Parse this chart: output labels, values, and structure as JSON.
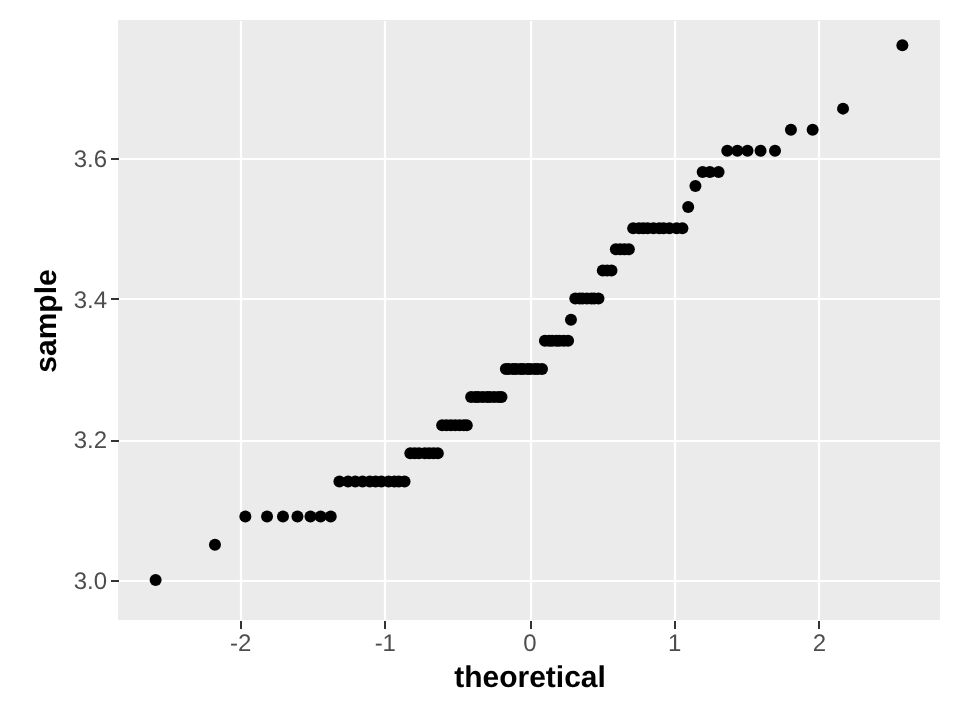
{
  "chart_data": {
    "type": "scatter",
    "xlabel": "theoretical",
    "ylabel": "sample",
    "x": [
      -2.58,
      -2.17,
      -1.96,
      -1.81,
      -1.7,
      -1.6,
      -1.51,
      -1.44,
      -1.37,
      -1.31,
      -1.25,
      -1.2,
      -1.15,
      -1.1,
      -1.06,
      -1.02,
      -0.97,
      -0.93,
      -0.9,
      -0.86,
      -0.82,
      -0.79,
      -0.76,
      -0.72,
      -0.69,
      -0.66,
      -0.63,
      -0.6,
      -0.57,
      -0.54,
      -0.51,
      -0.48,
      -0.45,
      -0.43,
      -0.4,
      -0.37,
      -0.35,
      -0.32,
      -0.29,
      -0.27,
      -0.24,
      -0.21,
      -0.19,
      -0.16,
      -0.14,
      -0.11,
      -0.09,
      -0.06,
      -0.04,
      -0.01,
      0.01,
      0.04,
      0.06,
      0.09,
      0.11,
      0.14,
      0.16,
      0.19,
      0.21,
      0.24,
      0.27,
      0.29,
      0.32,
      0.35,
      0.37,
      0.4,
      0.43,
      0.45,
      0.48,
      0.51,
      0.54,
      0.57,
      0.6,
      0.63,
      0.66,
      0.69,
      0.72,
      0.76,
      0.79,
      0.82,
      0.86,
      0.9,
      0.93,
      0.97,
      1.02,
      1.06,
      1.1,
      1.15,
      1.2,
      1.25,
      1.31,
      1.37,
      1.44,
      1.51,
      1.6,
      1.7,
      1.81,
      1.96,
      2.17,
      2.58
    ],
    "series": [
      {
        "color": "#000000",
        "values": [
          3.0,
          3.05,
          3.09,
          3.09,
          3.09,
          3.09,
          3.09,
          3.09,
          3.09,
          3.14,
          3.14,
          3.14,
          3.14,
          3.14,
          3.14,
          3.14,
          3.14,
          3.14,
          3.14,
          3.14,
          3.18,
          3.18,
          3.18,
          3.18,
          3.18,
          3.18,
          3.18,
          3.22,
          3.22,
          3.22,
          3.22,
          3.22,
          3.22,
          3.22,
          3.26,
          3.26,
          3.26,
          3.26,
          3.26,
          3.26,
          3.26,
          3.26,
          3.26,
          3.3,
          3.3,
          3.3,
          3.3,
          3.3,
          3.3,
          3.3,
          3.3,
          3.3,
          3.3,
          3.3,
          3.34,
          3.34,
          3.34,
          3.34,
          3.34,
          3.34,
          3.34,
          3.37,
          3.4,
          3.4,
          3.4,
          3.4,
          3.4,
          3.4,
          3.4,
          3.44,
          3.44,
          3.44,
          3.47,
          3.47,
          3.47,
          3.47,
          3.5,
          3.5,
          3.5,
          3.5,
          3.5,
          3.5,
          3.5,
          3.5,
          3.5,
          3.5,
          3.53,
          3.56,
          3.58,
          3.58,
          3.58,
          3.61,
          3.61,
          3.61,
          3.61,
          3.61,
          3.64,
          3.64,
          3.67,
          3.76
        ]
      }
    ],
    "xlim": [
      -2.84,
      2.84
    ],
    "ylim": [
      2.943,
      3.796
    ],
    "xticks": [
      -2,
      -1,
      0,
      1,
      2
    ],
    "yticks": [
      {
        "value": 3,
        "label": "3.0"
      },
      3.2,
      3.4,
      3.6
    ],
    "grid": true,
    "marker": "circle"
  }
}
